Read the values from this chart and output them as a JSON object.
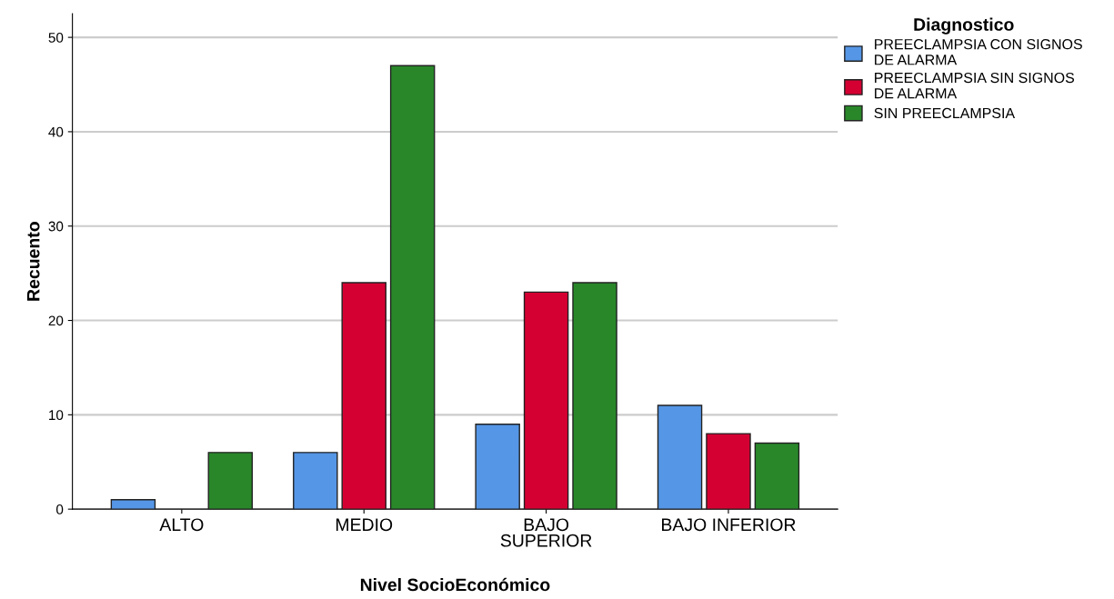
{
  "chart_data": {
    "type": "bar",
    "xlabel": "Nivel SocioEconómico",
    "ylabel": "Recuento",
    "legend_title": "Diagnostico",
    "categories": [
      "ALTO",
      "MEDIO",
      "BAJO\nSUPERIOR",
      "BAJO INFERIOR"
    ],
    "series": [
      {
        "name": "PREECLAMPSIA CON SIGNOS\nDE ALARMA",
        "color": "#5596e6",
        "values": [
          1,
          6,
          9,
          11
        ]
      },
      {
        "name": "PREECLAMPSIA SIN SIGNOS\nDE ALARMA",
        "color": "#d50032",
        "values": [
          null,
          24,
          23,
          8
        ]
      },
      {
        "name": "SIN PREECLAMPSIA",
        "color": "#29872a",
        "values": [
          6,
          47,
          24,
          7
        ]
      }
    ],
    "ylim": [
      0,
      52.5
    ],
    "yticks": [
      0,
      10,
      20,
      30,
      40,
      50
    ],
    "grid": "y",
    "legend": "top right"
  }
}
